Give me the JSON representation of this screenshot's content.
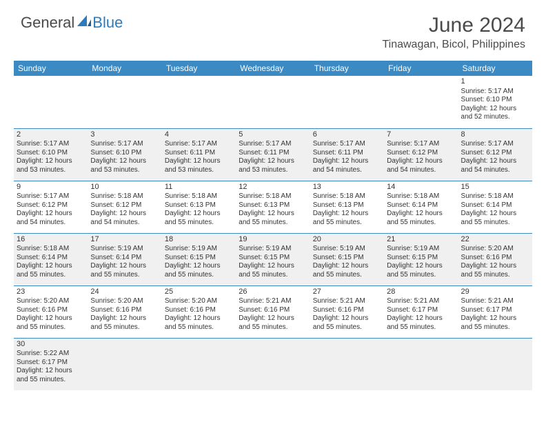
{
  "logo": {
    "text_general": "General",
    "text_blue": "Blue"
  },
  "title": "June 2024",
  "location": "Tinawagan, Bicol, Philippines",
  "colors": {
    "header_bg": "#3b8ac4",
    "header_text": "#ffffff",
    "row_alt_bg": "#f0f0f0",
    "row_bg": "#ffffff",
    "cell_border": "#3b8ac4",
    "text": "#333333",
    "logo_blue": "#2b7bbf",
    "logo_gray": "#4a4a4a"
  },
  "day_headers": [
    "Sunday",
    "Monday",
    "Tuesday",
    "Wednesday",
    "Thursday",
    "Friday",
    "Saturday"
  ],
  "weeks": [
    [
      null,
      null,
      null,
      null,
      null,
      null,
      {
        "n": "1",
        "sr": "Sunrise: 5:17 AM",
        "ss": "Sunset: 6:10 PM",
        "dl": "Daylight: 12 hours and 52 minutes."
      }
    ],
    [
      {
        "n": "2",
        "sr": "Sunrise: 5:17 AM",
        "ss": "Sunset: 6:10 PM",
        "dl": "Daylight: 12 hours and 53 minutes."
      },
      {
        "n": "3",
        "sr": "Sunrise: 5:17 AM",
        "ss": "Sunset: 6:10 PM",
        "dl": "Daylight: 12 hours and 53 minutes."
      },
      {
        "n": "4",
        "sr": "Sunrise: 5:17 AM",
        "ss": "Sunset: 6:11 PM",
        "dl": "Daylight: 12 hours and 53 minutes."
      },
      {
        "n": "5",
        "sr": "Sunrise: 5:17 AM",
        "ss": "Sunset: 6:11 PM",
        "dl": "Daylight: 12 hours and 53 minutes."
      },
      {
        "n": "6",
        "sr": "Sunrise: 5:17 AM",
        "ss": "Sunset: 6:11 PM",
        "dl": "Daylight: 12 hours and 54 minutes."
      },
      {
        "n": "7",
        "sr": "Sunrise: 5:17 AM",
        "ss": "Sunset: 6:12 PM",
        "dl": "Daylight: 12 hours and 54 minutes."
      },
      {
        "n": "8",
        "sr": "Sunrise: 5:17 AM",
        "ss": "Sunset: 6:12 PM",
        "dl": "Daylight: 12 hours and 54 minutes."
      }
    ],
    [
      {
        "n": "9",
        "sr": "Sunrise: 5:17 AM",
        "ss": "Sunset: 6:12 PM",
        "dl": "Daylight: 12 hours and 54 minutes."
      },
      {
        "n": "10",
        "sr": "Sunrise: 5:18 AM",
        "ss": "Sunset: 6:12 PM",
        "dl": "Daylight: 12 hours and 54 minutes."
      },
      {
        "n": "11",
        "sr": "Sunrise: 5:18 AM",
        "ss": "Sunset: 6:13 PM",
        "dl": "Daylight: 12 hours and 55 minutes."
      },
      {
        "n": "12",
        "sr": "Sunrise: 5:18 AM",
        "ss": "Sunset: 6:13 PM",
        "dl": "Daylight: 12 hours and 55 minutes."
      },
      {
        "n": "13",
        "sr": "Sunrise: 5:18 AM",
        "ss": "Sunset: 6:13 PM",
        "dl": "Daylight: 12 hours and 55 minutes."
      },
      {
        "n": "14",
        "sr": "Sunrise: 5:18 AM",
        "ss": "Sunset: 6:14 PM",
        "dl": "Daylight: 12 hours and 55 minutes."
      },
      {
        "n": "15",
        "sr": "Sunrise: 5:18 AM",
        "ss": "Sunset: 6:14 PM",
        "dl": "Daylight: 12 hours and 55 minutes."
      }
    ],
    [
      {
        "n": "16",
        "sr": "Sunrise: 5:18 AM",
        "ss": "Sunset: 6:14 PM",
        "dl": "Daylight: 12 hours and 55 minutes."
      },
      {
        "n": "17",
        "sr": "Sunrise: 5:19 AM",
        "ss": "Sunset: 6:14 PM",
        "dl": "Daylight: 12 hours and 55 minutes."
      },
      {
        "n": "18",
        "sr": "Sunrise: 5:19 AM",
        "ss": "Sunset: 6:15 PM",
        "dl": "Daylight: 12 hours and 55 minutes."
      },
      {
        "n": "19",
        "sr": "Sunrise: 5:19 AM",
        "ss": "Sunset: 6:15 PM",
        "dl": "Daylight: 12 hours and 55 minutes."
      },
      {
        "n": "20",
        "sr": "Sunrise: 5:19 AM",
        "ss": "Sunset: 6:15 PM",
        "dl": "Daylight: 12 hours and 55 minutes."
      },
      {
        "n": "21",
        "sr": "Sunrise: 5:19 AM",
        "ss": "Sunset: 6:15 PM",
        "dl": "Daylight: 12 hours and 55 minutes."
      },
      {
        "n": "22",
        "sr": "Sunrise: 5:20 AM",
        "ss": "Sunset: 6:16 PM",
        "dl": "Daylight: 12 hours and 55 minutes."
      }
    ],
    [
      {
        "n": "23",
        "sr": "Sunrise: 5:20 AM",
        "ss": "Sunset: 6:16 PM",
        "dl": "Daylight: 12 hours and 55 minutes."
      },
      {
        "n": "24",
        "sr": "Sunrise: 5:20 AM",
        "ss": "Sunset: 6:16 PM",
        "dl": "Daylight: 12 hours and 55 minutes."
      },
      {
        "n": "25",
        "sr": "Sunrise: 5:20 AM",
        "ss": "Sunset: 6:16 PM",
        "dl": "Daylight: 12 hours and 55 minutes."
      },
      {
        "n": "26",
        "sr": "Sunrise: 5:21 AM",
        "ss": "Sunset: 6:16 PM",
        "dl": "Daylight: 12 hours and 55 minutes."
      },
      {
        "n": "27",
        "sr": "Sunrise: 5:21 AM",
        "ss": "Sunset: 6:16 PM",
        "dl": "Daylight: 12 hours and 55 minutes."
      },
      {
        "n": "28",
        "sr": "Sunrise: 5:21 AM",
        "ss": "Sunset: 6:17 PM",
        "dl": "Daylight: 12 hours and 55 minutes."
      },
      {
        "n": "29",
        "sr": "Sunrise: 5:21 AM",
        "ss": "Sunset: 6:17 PM",
        "dl": "Daylight: 12 hours and 55 minutes."
      }
    ],
    [
      {
        "n": "30",
        "sr": "Sunrise: 5:22 AM",
        "ss": "Sunset: 6:17 PM",
        "dl": "Daylight: 12 hours and 55 minutes."
      },
      null,
      null,
      null,
      null,
      null,
      null
    ]
  ]
}
